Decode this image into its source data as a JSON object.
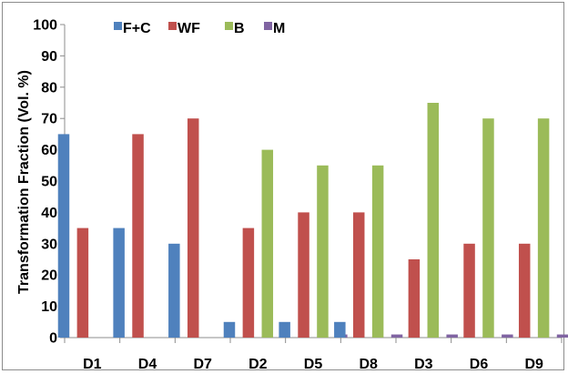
{
  "chart_data": {
    "type": "bar",
    "title": "",
    "xlabel": "",
    "ylabel": "Transformation Fraction (Vol. %)",
    "ylim": [
      0,
      100
    ],
    "yticks": [
      0,
      10,
      20,
      30,
      40,
      50,
      60,
      70,
      80,
      90,
      100
    ],
    "grid": false,
    "legend_position": "top",
    "categories": [
      "D1",
      "D4",
      "D7",
      "D2",
      "D5",
      "D8",
      "D3",
      "D6",
      "D9"
    ],
    "series": [
      {
        "name": "F+C",
        "color": "#4f81bd",
        "values": [
          65,
          35,
          30,
          5,
          5,
          5,
          0,
          0,
          0
        ]
      },
      {
        "name": "WF",
        "color": "#c0504d",
        "values": [
          35,
          65,
          70,
          35,
          40,
          40,
          25,
          30,
          30
        ]
      },
      {
        "name": "B",
        "color": "#9bbb59",
        "values": [
          0,
          0,
          0,
          60,
          55,
          55,
          75,
          70,
          70
        ]
      },
      {
        "name": "M",
        "color": "#8064a2",
        "values": [
          0,
          0,
          0,
          0,
          1,
          1,
          1,
          1,
          1
        ]
      }
    ]
  }
}
